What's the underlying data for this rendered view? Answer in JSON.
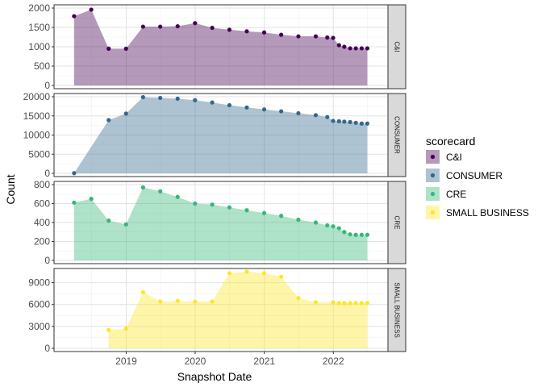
{
  "chart_data": {
    "type": "area",
    "x_label": "Snapshot Date",
    "y_label": "Count",
    "x_ticks": [
      "2019",
      "2020",
      "2021",
      "2022"
    ],
    "legend": {
      "title": "scorecard",
      "position": "right",
      "entries": [
        "C&I",
        "CONSUMER",
        "CRE",
        "SMALL BUSINESS"
      ]
    },
    "grid": true,
    "colors": {
      "C&I": "#440154",
      "CONSUMER": "#31688E",
      "CRE": "#35B779",
      "SMALL BUSINESS": "#FDE725"
    },
    "panels": [
      {
        "name": "C&I",
        "strip_label": "C&I",
        "ylim": [
          0,
          2000
        ],
        "y_ticks": [
          0,
          500,
          1000,
          1500,
          2000
        ],
        "points": [
          [
            "2018-03-31",
            1790
          ],
          [
            "2018-06-30",
            1960
          ],
          [
            "2018-09-30",
            950
          ],
          [
            "2018-12-31",
            950
          ],
          [
            "2019-03-31",
            1520
          ],
          [
            "2019-06-30",
            1520
          ],
          [
            "2019-09-30",
            1530
          ],
          [
            "2019-12-31",
            1610
          ],
          [
            "2020-03-31",
            1490
          ],
          [
            "2020-06-30",
            1440
          ],
          [
            "2020-09-30",
            1400
          ],
          [
            "2020-12-31",
            1370
          ],
          [
            "2021-03-31",
            1310
          ],
          [
            "2021-06-30",
            1270
          ],
          [
            "2021-09-30",
            1270
          ],
          [
            "2021-11-30",
            1240
          ],
          [
            "2021-12-31",
            1230
          ],
          [
            "2022-01-31",
            1040
          ],
          [
            "2022-02-28",
            1000
          ],
          [
            "2022-03-31",
            960
          ],
          [
            "2022-04-30",
            960
          ],
          [
            "2022-05-31",
            960
          ],
          [
            "2022-06-30",
            960
          ]
        ]
      },
      {
        "name": "CONSUMER",
        "strip_label": "CONSUMER",
        "ylim": [
          0,
          20000
        ],
        "y_ticks": [
          0,
          5000,
          10000,
          15000,
          20000
        ],
        "points": [
          [
            "2018-03-31",
            50
          ],
          [
            "2018-09-30",
            13900
          ],
          [
            "2018-12-31",
            15600
          ],
          [
            "2019-03-31",
            19900
          ],
          [
            "2019-06-30",
            19700
          ],
          [
            "2019-09-30",
            19500
          ],
          [
            "2019-12-31",
            19100
          ],
          [
            "2020-03-31",
            18500
          ],
          [
            "2020-06-30",
            17800
          ],
          [
            "2020-09-30",
            17200
          ],
          [
            "2020-12-31",
            16700
          ],
          [
            "2021-03-31",
            16200
          ],
          [
            "2021-06-30",
            15700
          ],
          [
            "2021-09-30",
            15200
          ],
          [
            "2021-11-30",
            14700
          ],
          [
            "2021-12-31",
            13700
          ],
          [
            "2022-01-31",
            13600
          ],
          [
            "2022-02-28",
            13500
          ],
          [
            "2022-03-31",
            13400
          ],
          [
            "2022-04-30",
            13200
          ],
          [
            "2022-05-31",
            13000
          ],
          [
            "2022-06-30",
            13000
          ]
        ]
      },
      {
        "name": "CRE",
        "strip_label": "CRE",
        "ylim": [
          0,
          800
        ],
        "y_ticks": [
          0,
          200,
          400,
          600,
          800
        ],
        "points": [
          [
            "2018-03-31",
            610
          ],
          [
            "2018-06-30",
            650
          ],
          [
            "2018-09-30",
            420
          ],
          [
            "2018-12-31",
            380
          ],
          [
            "2019-03-31",
            770
          ],
          [
            "2019-06-30",
            730
          ],
          [
            "2019-09-30",
            670
          ],
          [
            "2019-12-31",
            600
          ],
          [
            "2020-03-31",
            590
          ],
          [
            "2020-06-30",
            560
          ],
          [
            "2020-09-30",
            530
          ],
          [
            "2020-12-31",
            500
          ],
          [
            "2021-03-31",
            470
          ],
          [
            "2021-06-30",
            430
          ],
          [
            "2021-09-30",
            400
          ],
          [
            "2021-11-30",
            370
          ],
          [
            "2021-12-31",
            360
          ],
          [
            "2022-01-31",
            340
          ],
          [
            "2022-02-28",
            300
          ],
          [
            "2022-03-31",
            275
          ],
          [
            "2022-04-30",
            270
          ],
          [
            "2022-05-31",
            270
          ],
          [
            "2022-06-30",
            270
          ]
        ]
      },
      {
        "name": "SMALL BUSINESS",
        "strip_label": "SMALL BUSINESS",
        "ylim": [
          0,
          10500
        ],
        "y_ticks": [
          0,
          3000,
          6000,
          9000
        ],
        "points": [
          [
            "2018-09-30",
            2500
          ],
          [
            "2018-12-31",
            2700
          ],
          [
            "2019-03-31",
            7700
          ],
          [
            "2019-06-30",
            6400
          ],
          [
            "2019-09-30",
            6500
          ],
          [
            "2019-12-31",
            6400
          ],
          [
            "2020-03-31",
            6400
          ],
          [
            "2020-06-30",
            10300
          ],
          [
            "2020-09-30",
            10500
          ],
          [
            "2020-12-31",
            10300
          ],
          [
            "2021-03-31",
            9800
          ],
          [
            "2021-06-30",
            6900
          ],
          [
            "2021-09-30",
            6300
          ],
          [
            "2021-12-31",
            6300
          ],
          [
            "2022-01-31",
            6200
          ],
          [
            "2022-02-28",
            6200
          ],
          [
            "2022-03-31",
            6200
          ],
          [
            "2022-04-30",
            6200
          ],
          [
            "2022-05-31",
            6200
          ],
          [
            "2022-06-30",
            6200
          ]
        ]
      }
    ]
  }
}
